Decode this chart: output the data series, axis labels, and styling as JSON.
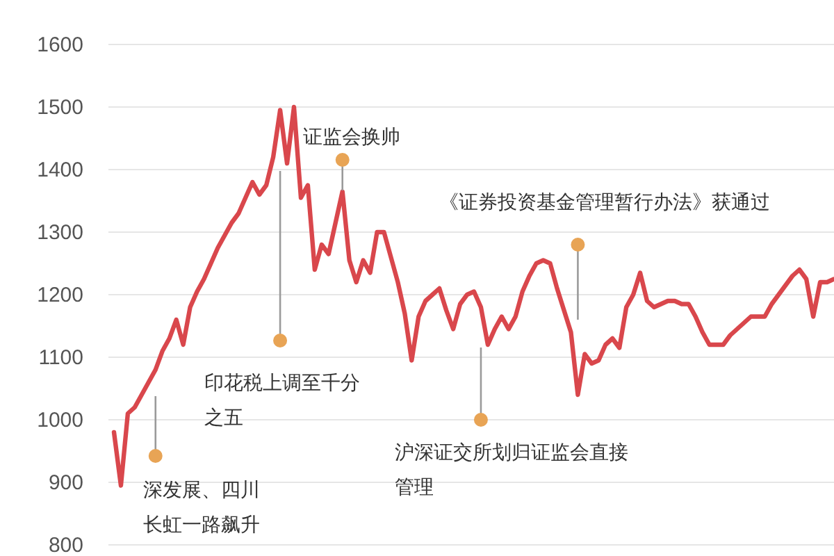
{
  "chart_data": {
    "type": "line",
    "categories": [
      null,
      null,
      null,
      null,
      null,
      null,
      null,
      null,
      null,
      null,
      null,
      null,
      null,
      null,
      null,
      null,
      null,
      null,
      null,
      null,
      null,
      null,
      null,
      null,
      null,
      null,
      null,
      null,
      null,
      null,
      null,
      null,
      null,
      null,
      null,
      null,
      null,
      null,
      null,
      null,
      null,
      null,
      null,
      null,
      null,
      null,
      null,
      null,
      null,
      null,
      null,
      null,
      null,
      null,
      null,
      null,
      null,
      null,
      null,
      null,
      null,
      null,
      null,
      null,
      null,
      null,
      null,
      null,
      null,
      null,
      null,
      null,
      null,
      null,
      null,
      null,
      null,
      null,
      null,
      null,
      null,
      null,
      null,
      null,
      null,
      null,
      null,
      null,
      null,
      null,
      null,
      null,
      null,
      null,
      null,
      null,
      null,
      null,
      null,
      null,
      null,
      null,
      null,
      null,
      null
    ],
    "values": [
      980,
      895,
      1010,
      1020,
      1040,
      1060,
      1080,
      1110,
      1130,
      1160,
      1120,
      1180,
      1205,
      1225,
      1250,
      1275,
      1295,
      1315,
      1330,
      1355,
      1380,
      1360,
      1375,
      1420,
      1495,
      1410,
      1500,
      1355,
      1375,
      1240,
      1280,
      1265,
      1315,
      1365,
      1255,
      1220,
      1255,
      1235,
      1300,
      1300,
      1260,
      1220,
      1170,
      1095,
      1165,
      1190,
      1200,
      1210,
      1175,
      1145,
      1185,
      1200,
      1205,
      1180,
      1120,
      1145,
      1165,
      1145,
      1165,
      1205,
      1230,
      1250,
      1255,
      1250,
      1210,
      1175,
      1140,
      1040,
      1105,
      1090,
      1095,
      1120,
      1130,
      1115,
      1180,
      1200,
      1235,
      1190,
      1180,
      1185,
      1190,
      1190,
      1185,
      1185,
      1165,
      1140,
      1120,
      1120,
      1120,
      1135,
      1145,
      1155,
      1165,
      1165,
      1165,
      1185,
      1200,
      1215,
      1230,
      1240,
      1225,
      1165,
      1220,
      1220,
      1225
    ],
    "color": "#d9474c",
    "ylim": [
      800,
      1600
    ],
    "yticks": [
      800,
      900,
      1000,
      1100,
      1200,
      1300,
      1400,
      1500,
      1600
    ],
    "grid": "y",
    "annotations": [
      "深发展、四川长虹一路飙升",
      "印花税上调至千分之五",
      "证监会换帅",
      "沪深证交所划归证监会直接管理",
      "《证券投资基金管理暂行办法》获通过"
    ]
  }
}
